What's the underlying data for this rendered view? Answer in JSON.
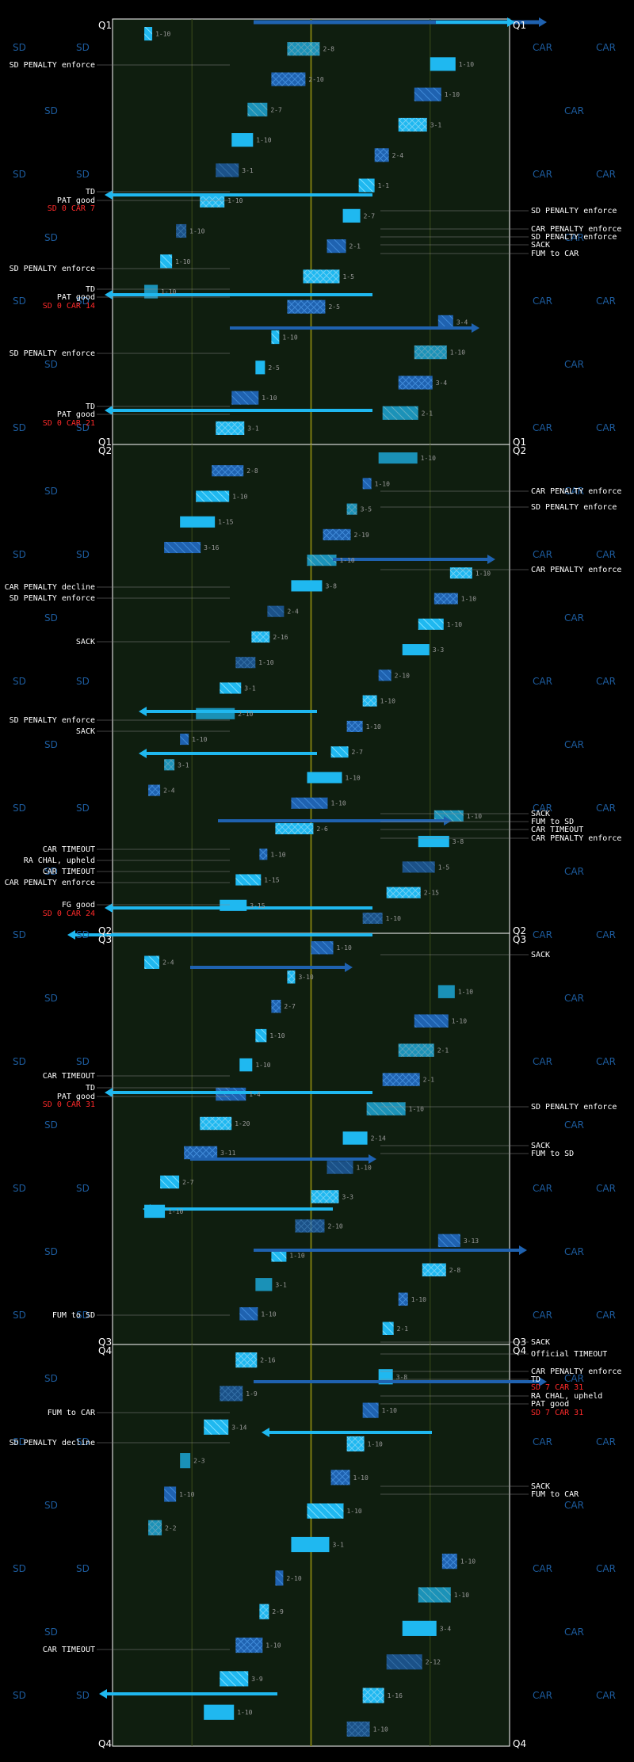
{
  "colors": {
    "background": "#000000",
    "field": "#0f1e0f",
    "field_border": "#ffffff",
    "midfield_line": "#7a7a10",
    "ten_line": "#3d4d1a",
    "drive_bright": "#1fb8f0",
    "drive_dark": "#1f62b0",
    "team_watermark": "#1d5c9e",
    "score_red": "#ff2a2a"
  },
  "chart_data": {
    "type": "drive-chart",
    "teams": [
      "SD",
      "CAR"
    ],
    "quarters": [
      {
        "label": "Q1",
        "left_events": [
          "SD PENALTY enforce",
          "TD",
          "PAT good",
          "SD 0 CAR 7",
          "SD PENALTY enforce",
          "TD",
          "PAT good",
          "SD 0 CAR 14",
          "SD PENALTY enforce",
          "TD",
          "PAT good",
          "SD 0 CAR 21"
        ],
        "right_events": [
          "SD PENALTY enforce",
          "CAR PENALTY enforce",
          "SD PENALTY enforce",
          "SACK",
          "FUM to CAR"
        ],
        "downs": [
          "1-10",
          "2-8",
          "1-10",
          "2-10",
          "1-10",
          "2-7",
          "3-1",
          "1-10",
          "2-4",
          "3-1",
          "1-1",
          "1-10",
          "2-7",
          "1-10",
          "2-1",
          "1-10",
          "1-5",
          "1-10",
          "2-5",
          "3-4",
          "1-10",
          "1-10",
          "2-5",
          "3-4",
          "1-10",
          "2-1",
          "3-1"
        ]
      },
      {
        "label": "Q2",
        "left_events": [
          "CAR PENALTY decline",
          "SD PENALTY enforce",
          "SACK",
          "SD PENALTY enforce",
          "SACK",
          "CAR TIMEOUT",
          "RA CHAL, upheld",
          "CAR TIMEOUT",
          "CAR PENALTY enforce",
          "FG good",
          "SD 0 CAR 24"
        ],
        "right_events": [
          "CAR PENALTY enforce",
          "SD PENALTY enforce",
          "CAR PENALTY enforce",
          "SACK",
          "FUM to SD",
          "CAR TIMEOUT",
          "CAR PENALTY enforce"
        ],
        "downs": [
          "1-10",
          "2-8",
          "1-10",
          "1-10",
          "3-5",
          "1-15",
          "2-19",
          "3-16",
          "1-10",
          "1-10",
          "3-8",
          "1-10",
          "2-4",
          "1-10",
          "2-16",
          "3-3",
          "1-10",
          "2-10",
          "3-1",
          "1-10",
          "2-10",
          "1-10",
          "1-10",
          "2-7",
          "3-1",
          "1-10",
          "2-4",
          "1-10",
          "1-10",
          "2-6",
          "3-8",
          "1-10",
          "1-5",
          "1-15",
          "2-15",
          "3-15",
          "1-10"
        ]
      },
      {
        "label": "Q3",
        "left_events": [
          "CAR TIMEOUT",
          "TD",
          "PAT good",
          "SD 0 CAR 31",
          "FUM to SD"
        ],
        "right_events": [
          "SACK",
          "SD PENALTY enforce",
          "SACK",
          "FUM to SD",
          "SACK"
        ],
        "downs": [
          "1-10",
          "2-4",
          "3-10",
          "1-10",
          "2-7",
          "1-10",
          "1-10",
          "2-1",
          "1-10",
          "2-1",
          "1-4",
          "1-10",
          "1-20",
          "2-14",
          "3-11",
          "1-10",
          "2-7",
          "3-3",
          "1-10",
          "2-10",
          "3-13",
          "1-10",
          "2-8",
          "3-1",
          "1-10",
          "1-10",
          "2-1"
        ]
      },
      {
        "label": "Q4",
        "left_events": [
          "FUM to CAR",
          "SD PENALTY decline",
          "CAR TIMEOUT"
        ],
        "right_events": [
          "Official TIMEOUT",
          "CAR PENALTY enforce",
          "TD",
          "SD 7 CAR 31",
          "RA CHAL, upheld",
          "PAT good",
          "SD 7 CAR 31",
          "SACK",
          "FUM to CAR"
        ],
        "downs": [
          "2-16",
          "3-8",
          "1-9",
          "1-10",
          "3-14",
          "1-10",
          "2-3",
          "1-10",
          "1-10",
          "1-10",
          "2-2",
          "3-1",
          "1-10",
          "2-10",
          "1-10",
          "2-9",
          "3-4",
          "1-10",
          "2-12",
          "3-9",
          "1-16",
          "1-10",
          "1-10"
        ]
      }
    ],
    "final_score": "SD 7 CAR 31"
  }
}
